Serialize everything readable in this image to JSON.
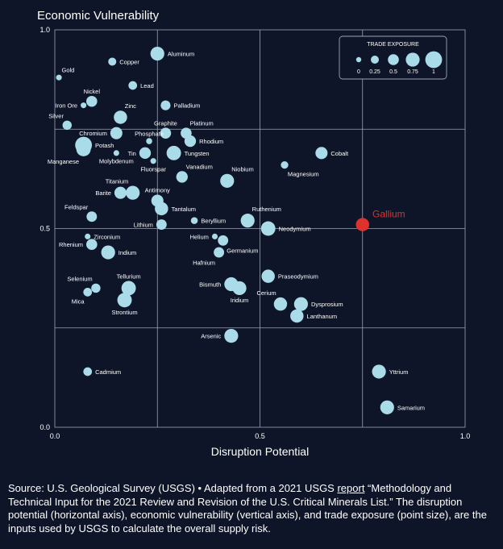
{
  "chart_data": {
    "type": "scatter",
    "title": "Economic Vulnerability",
    "xlabel": "Disruption Potential",
    "ylabel": "Economic Vulnerability",
    "xlim": [
      0,
      1
    ],
    "ylim": [
      0,
      1
    ],
    "x_ticks": [
      "0.0",
      "0.5",
      "1.0"
    ],
    "y_ticks": [
      "0.0",
      "0.5",
      "1.0"
    ],
    "grid": true,
    "colors": {
      "point": "#a9dbe9",
      "highlight": "#e0322c",
      "grid": "#9aa3b3",
      "background": "#0e1528"
    },
    "size_legend": {
      "title": "TRADE EXPOSURE",
      "placement": "top-right",
      "items": [
        {
          "label": "0",
          "value": 0
        },
        {
          "label": "0.25",
          "value": 0.25
        },
        {
          "label": "0.5",
          "value": 0.5
        },
        {
          "label": "0.75",
          "value": 0.75
        },
        {
          "label": "1",
          "value": 1
        }
      ]
    },
    "points": [
      {
        "name": "Copper",
        "x": 0.14,
        "y": 0.92,
        "size": 0.25,
        "label_pos": "right"
      },
      {
        "name": "Aluminum",
        "x": 0.25,
        "y": 0.94,
        "size": 0.75,
        "label_pos": "right"
      },
      {
        "name": "Gold",
        "x": 0.01,
        "y": 0.88,
        "size": 0.05,
        "label_pos": "above-right"
      },
      {
        "name": "Lead",
        "x": 0.19,
        "y": 0.86,
        "size": 0.3,
        "label_pos": "right"
      },
      {
        "name": "Nickel",
        "x": 0.09,
        "y": 0.82,
        "size": 0.5,
        "label_pos": "above"
      },
      {
        "name": "Iron Ore",
        "x": 0.07,
        "y": 0.81,
        "size": 0.05,
        "label_pos": "left"
      },
      {
        "name": "Palladium",
        "x": 0.27,
        "y": 0.81,
        "size": 0.4,
        "label_pos": "right"
      },
      {
        "name": "Zinc",
        "x": 0.16,
        "y": 0.78,
        "size": 0.7,
        "label_pos": "above-right"
      },
      {
        "name": "Silver",
        "x": 0.03,
        "y": 0.76,
        "size": 0.35,
        "label_pos": "above-left"
      },
      {
        "name": "Chromium",
        "x": 0.15,
        "y": 0.74,
        "size": 0.6,
        "label_pos": "left"
      },
      {
        "name": "Graphite",
        "x": 0.27,
        "y": 0.74,
        "size": 0.5,
        "label_pos": "above"
      },
      {
        "name": "Platinum",
        "x": 0.32,
        "y": 0.74,
        "size": 0.5,
        "label_pos": "above-right"
      },
      {
        "name": "Phosphate",
        "x": 0.23,
        "y": 0.72,
        "size": 0.08,
        "label_pos": "above"
      },
      {
        "name": "Rhodium",
        "x": 0.33,
        "y": 0.72,
        "size": 0.55,
        "label_pos": "right"
      },
      {
        "name": "Potash",
        "x": 0.07,
        "y": 0.71,
        "size": 1.0,
        "label_pos": "right"
      },
      {
        "name": "Manganese",
        "x": 0.07,
        "y": 0.7,
        "size": 0.8,
        "label_pos": "below-left"
      },
      {
        "name": "Molybdenum",
        "x": 0.15,
        "y": 0.69,
        "size": 0.05,
        "label_pos": "below"
      },
      {
        "name": "Tin",
        "x": 0.22,
        "y": 0.69,
        "size": 0.55,
        "label_pos": "left"
      },
      {
        "name": "Tungsten",
        "x": 0.29,
        "y": 0.69,
        "size": 0.8,
        "label_pos": "right"
      },
      {
        "name": "Fluorspar",
        "x": 0.24,
        "y": 0.67,
        "size": 0.05,
        "label_pos": "below"
      },
      {
        "name": "Cobalt",
        "x": 0.65,
        "y": 0.69,
        "size": 0.6,
        "label_pos": "right"
      },
      {
        "name": "Magnesium",
        "x": 0.56,
        "y": 0.66,
        "size": 0.2,
        "label_pos": "below-right"
      },
      {
        "name": "Vanadium",
        "x": 0.31,
        "y": 0.63,
        "size": 0.55,
        "label_pos": "above-right"
      },
      {
        "name": "Niobium",
        "x": 0.42,
        "y": 0.62,
        "size": 0.75,
        "label_pos": "above-right"
      },
      {
        "name": "Titanium",
        "x": 0.19,
        "y": 0.59,
        "size": 0.75,
        "label_pos": "above-left"
      },
      {
        "name": "Barite",
        "x": 0.16,
        "y": 0.59,
        "size": 0.6,
        "label_pos": "left"
      },
      {
        "name": "Antimony",
        "x": 0.25,
        "y": 0.57,
        "size": 0.6,
        "label_pos": "above"
      },
      {
        "name": "Tantalum",
        "x": 0.26,
        "y": 0.55,
        "size": 0.7,
        "label_pos": "right"
      },
      {
        "name": "Feldspar",
        "x": 0.09,
        "y": 0.53,
        "size": 0.45,
        "label_pos": "above-left"
      },
      {
        "name": "Lithium",
        "x": 0.26,
        "y": 0.51,
        "size": 0.45,
        "label_pos": "left"
      },
      {
        "name": "Beryllium",
        "x": 0.34,
        "y": 0.52,
        "size": 0.15,
        "label_pos": "right"
      },
      {
        "name": "Ruthenium",
        "x": 0.47,
        "y": 0.52,
        "size": 0.75,
        "label_pos": "above-right"
      },
      {
        "name": "Neodymium",
        "x": 0.52,
        "y": 0.5,
        "size": 0.8,
        "label_pos": "right"
      },
      {
        "name": "Gallium",
        "x": 0.75,
        "y": 0.51,
        "size": 0.7,
        "label_pos": "right",
        "highlight": true
      },
      {
        "name": "Zirconium",
        "x": 0.08,
        "y": 0.48,
        "size": 0.05,
        "label_pos": "right"
      },
      {
        "name": "Helium",
        "x": 0.39,
        "y": 0.48,
        "size": 0.05,
        "label_pos": "left"
      },
      {
        "name": "Germanium",
        "x": 0.41,
        "y": 0.47,
        "size": 0.45,
        "label_pos": "below-right"
      },
      {
        "name": "Rhenium",
        "x": 0.09,
        "y": 0.46,
        "size": 0.5,
        "label_pos": "left"
      },
      {
        "name": "Indium",
        "x": 0.13,
        "y": 0.44,
        "size": 0.75,
        "label_pos": "right"
      },
      {
        "name": "Hafnium",
        "x": 0.4,
        "y": 0.44,
        "size": 0.45,
        "label_pos": "below-left"
      },
      {
        "name": "Praseodymium",
        "x": 0.52,
        "y": 0.38,
        "size": 0.7,
        "label_pos": "right"
      },
      {
        "name": "Bismuth",
        "x": 0.43,
        "y": 0.36,
        "size": 0.75,
        "label_pos": "left"
      },
      {
        "name": "Iridium",
        "x": 0.45,
        "y": 0.35,
        "size": 0.75,
        "label_pos": "below"
      },
      {
        "name": "Selenium",
        "x": 0.1,
        "y": 0.35,
        "size": 0.35,
        "label_pos": "above-left"
      },
      {
        "name": "Tellurium",
        "x": 0.18,
        "y": 0.35,
        "size": 0.8,
        "label_pos": "above"
      },
      {
        "name": "Mica",
        "x": 0.08,
        "y": 0.34,
        "size": 0.3,
        "label_pos": "below-left"
      },
      {
        "name": "Strontium",
        "x": 0.17,
        "y": 0.32,
        "size": 0.8,
        "label_pos": "below"
      },
      {
        "name": "Cerium",
        "x": 0.55,
        "y": 0.31,
        "size": 0.7,
        "label_pos": "above-left"
      },
      {
        "name": "Dysprosium",
        "x": 0.6,
        "y": 0.31,
        "size": 0.75,
        "label_pos": "right"
      },
      {
        "name": "Lanthanum",
        "x": 0.59,
        "y": 0.28,
        "size": 0.7,
        "label_pos": "right"
      },
      {
        "name": "Arsenic",
        "x": 0.43,
        "y": 0.23,
        "size": 0.75,
        "label_pos": "left"
      },
      {
        "name": "Cadmium",
        "x": 0.08,
        "y": 0.14,
        "size": 0.3,
        "label_pos": "right"
      },
      {
        "name": "Yttrium",
        "x": 0.79,
        "y": 0.14,
        "size": 0.75,
        "label_pos": "right"
      },
      {
        "name": "Samarium",
        "x": 0.81,
        "y": 0.05,
        "size": 0.75,
        "label_pos": "right"
      }
    ]
  },
  "source": {
    "lead": "Source: U.S. Geological Survey (USGS) • Adapted from a 2021 USGS ",
    "link_text": "report",
    "rest": " “Methodology and Technical Input for the 2021 Review and Revision of the U.S. Critical Minerals List.” The disruption potential (horizontal axis), economic vulnerability (vertical axis), and trade exposure (point size), are the inputs used by USGS to calculate the overall supply risk."
  }
}
